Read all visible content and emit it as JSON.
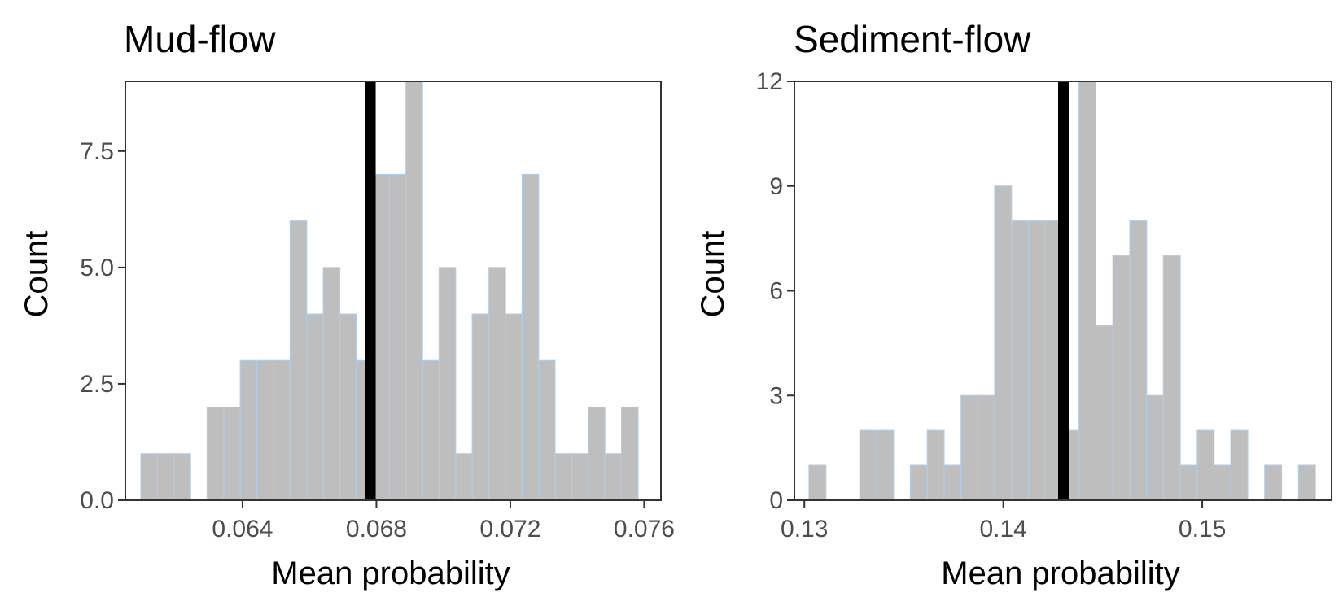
{
  "chart_data": [
    {
      "type": "bar",
      "title": "Mud-flow",
      "xlabel": "Mean probability",
      "ylabel": "Count",
      "xlim": [
        0.0605,
        0.0765
      ],
      "ylim": [
        0,
        9
      ],
      "xticks": [
        0.064,
        0.068,
        0.072,
        0.076
      ],
      "xtick_labels": [
        "0.064",
        "0.068",
        "0.072",
        "0.076"
      ],
      "yticks": [
        0,
        2.5,
        5,
        7.5
      ],
      "ytick_labels": [
        "0.0",
        "2.5",
        "5.0",
        "7.5"
      ],
      "bin_width": 0.000495,
      "bin_centers": [
        0.06121,
        0.06171,
        0.0622,
        0.0627,
        0.06319,
        0.06369,
        0.06418,
        0.06468,
        0.06517,
        0.06567,
        0.06616,
        0.06666,
        0.06715,
        0.06765,
        0.06814,
        0.06864,
        0.06913,
        0.06963,
        0.07012,
        0.07062,
        0.07111,
        0.07161,
        0.0721,
        0.0726,
        0.07309,
        0.07359,
        0.07408,
        0.07458,
        0.07507,
        0.07557
      ],
      "values": [
        1,
        1,
        1,
        0,
        2,
        2,
        3,
        3,
        3,
        6,
        4,
        5,
        4,
        3,
        7,
        7,
        9,
        3,
        5,
        1,
        4,
        5,
        4,
        7,
        3,
        1,
        1,
        2,
        1,
        2
      ],
      "reference_line": 0.06782,
      "grid": false
    },
    {
      "type": "bar",
      "title": "Sediment-flow",
      "xlabel": "Mean probability",
      "ylabel": "Count",
      "xlim": [
        0.1295,
        0.1565
      ],
      "ylim": [
        0,
        12
      ],
      "xticks": [
        0.13,
        0.14,
        0.15
      ],
      "xtick_labels": [
        "0.13",
        "0.14",
        "0.15"
      ],
      "yticks": [
        0,
        3,
        6,
        9,
        12
      ],
      "ytick_labels": [
        "0",
        "3",
        "6",
        "9",
        "12"
      ],
      "bin_width": 0.000848,
      "bin_centers": [
        0.13066,
        0.13151,
        0.13236,
        0.13321,
        0.13406,
        0.1349,
        0.13575,
        0.1366,
        0.13745,
        0.1383,
        0.13914,
        0.13999,
        0.14084,
        0.14169,
        0.14254,
        0.14338,
        0.14423,
        0.14508,
        0.14593,
        0.14678,
        0.14762,
        0.14847,
        0.14932,
        0.15017,
        0.15102,
        0.15186,
        0.15271,
        0.15356,
        0.15441,
        0.15526
      ],
      "values": [
        1,
        0,
        0,
        2,
        2,
        0,
        1,
        2,
        1,
        3,
        3,
        9,
        8,
        8,
        8,
        2,
        12,
        5,
        7,
        8,
        3,
        7,
        1,
        2,
        1,
        2,
        0,
        1,
        0,
        1
      ],
      "reference_line": 0.14302,
      "grid": false
    }
  ]
}
